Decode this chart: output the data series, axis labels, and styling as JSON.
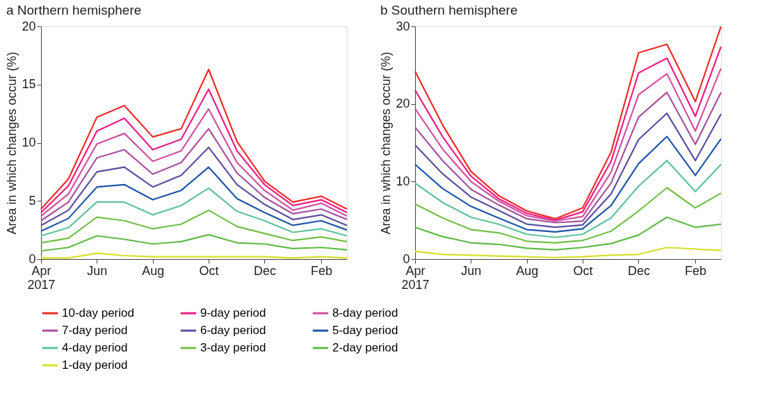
{
  "chart_data": [
    {
      "type": "line",
      "title": "a Northern hemisphere",
      "ylabel": "Area in which changes occur (%)",
      "x": [
        "2017-04",
        "2017-05",
        "2017-06",
        "2017-07",
        "2017-08",
        "2017-09",
        "2017-10",
        "2017-11",
        "2017-12",
        "2018-01",
        "2018-02",
        "2018-03"
      ],
      "xlim": [
        "2017-04",
        "2018-03"
      ],
      "xticks": [
        {
          "value": "2017-04",
          "label": "Apr 2017"
        },
        {
          "value": "2017-06",
          "label": "Jun"
        },
        {
          "value": "2017-08",
          "label": "Aug"
        },
        {
          "value": "2017-10",
          "label": "Oct"
        },
        {
          "value": "2017-12",
          "label": "Dec"
        },
        {
          "value": "2018-02",
          "label": "Feb"
        }
      ],
      "ylim": [
        0,
        20
      ],
      "yticks": [
        0,
        5,
        10,
        15,
        20
      ],
      "grid": false,
      "legend": "bottom",
      "marker": "none",
      "line_style": "solid",
      "series": [
        {
          "name": "10-day period",
          "color": "#ee2a2a",
          "values": [
            4.3,
            6.9,
            12.2,
            13.2,
            10.5,
            11.2,
            16.3,
            10.1,
            6.7,
            4.9,
            5.4,
            4.3
          ]
        },
        {
          "name": "9-day period",
          "color": "#ec1c84",
          "values": [
            4.0,
            6.3,
            11.0,
            12.1,
            9.4,
            10.3,
            14.6,
            9.3,
            6.4,
            4.6,
            5.1,
            4.0
          ]
        },
        {
          "name": "8-day period",
          "color": "#d2509e",
          "values": [
            3.7,
            5.6,
            9.9,
            10.8,
            8.4,
            9.3,
            12.9,
            8.3,
            5.9,
            4.2,
            4.8,
            3.7
          ]
        },
        {
          "name": "7-day period",
          "color": "#a6509e",
          "values": [
            3.3,
            4.9,
            8.7,
            9.4,
            7.3,
            8.3,
            11.2,
            7.4,
            5.3,
            3.9,
            4.3,
            3.4
          ]
        },
        {
          "name": "6-day period",
          "color": "#5a4fa0",
          "values": [
            2.9,
            4.2,
            7.5,
            7.9,
            6.2,
            7.2,
            9.6,
            6.4,
            4.7,
            3.4,
            3.8,
            2.9
          ]
        },
        {
          "name": "5-day period",
          "color": "#1e55a8",
          "values": [
            2.4,
            3.5,
            6.2,
            6.4,
            5.1,
            5.9,
            7.9,
            5.2,
            4.0,
            2.9,
            3.3,
            2.5
          ]
        },
        {
          "name": "4-day period",
          "color": "#5ec29a",
          "values": [
            2.0,
            2.7,
            4.9,
            4.9,
            3.8,
            4.6,
            6.1,
            4.1,
            3.3,
            2.3,
            2.6,
            2.0
          ]
        },
        {
          "name": "3-day period",
          "color": "#72bf48",
          "values": [
            1.4,
            1.8,
            3.6,
            3.3,
            2.6,
            3.0,
            4.2,
            2.8,
            2.2,
            1.6,
            1.9,
            1.5
          ]
        },
        {
          "name": "2-day period",
          "color": "#5fba46",
          "values": [
            0.7,
            1.0,
            2.0,
            1.7,
            1.3,
            1.5,
            2.1,
            1.4,
            1.3,
            0.9,
            1.0,
            0.8
          ]
        },
        {
          "name": "1-day period",
          "color": "#d8df2a",
          "values": [
            0.1,
            0.1,
            0.5,
            0.3,
            0.2,
            0.2,
            0.2,
            0.2,
            0.2,
            0.1,
            0.2,
            0.1
          ]
        }
      ]
    },
    {
      "type": "line",
      "title": "b Southern hemisphere",
      "ylabel": "Area in which changes occur (%)",
      "x": [
        "2017-04",
        "2017-05",
        "2017-06",
        "2017-07",
        "2017-08",
        "2017-09",
        "2017-10",
        "2017-11",
        "2017-12",
        "2018-01",
        "2018-02",
        "2018-03"
      ],
      "xlim": [
        "2017-04",
        "2018-03"
      ],
      "xticks": [
        {
          "value": "2017-04",
          "label": "Apr 2017"
        },
        {
          "value": "2017-06",
          "label": "Jun"
        },
        {
          "value": "2017-08",
          "label": "Aug"
        },
        {
          "value": "2017-10",
          "label": "Oct"
        },
        {
          "value": "2017-12",
          "label": "Dec"
        },
        {
          "value": "2018-02",
          "label": "Feb"
        }
      ],
      "ylim": [
        0,
        30
      ],
      "yticks": [
        0,
        10,
        20,
        30
      ],
      "grid": false,
      "marker": "none",
      "line_style": "solid",
      "series": [
        {
          "name": "10-day period",
          "color": "#ee2a2a",
          "values": [
            24.2,
            17.3,
            11.3,
            8.2,
            6.2,
            5.2,
            6.6,
            13.8,
            26.6,
            27.7,
            20.3,
            30.0
          ]
        },
        {
          "name": "9-day period",
          "color": "#ec1c84",
          "values": [
            21.8,
            15.8,
            10.7,
            7.8,
            5.9,
            5.0,
            6.1,
            12.6,
            24.0,
            25.9,
            18.4,
            27.4
          ]
        },
        {
          "name": "8-day period",
          "color": "#d2509e",
          "values": [
            19.4,
            14.2,
            10.0,
            7.5,
            5.6,
            4.9,
            5.5,
            11.2,
            21.2,
            23.9,
            16.5,
            24.6
          ]
        },
        {
          "name": "7-day period",
          "color": "#a6509e",
          "values": [
            17.0,
            12.7,
            9.0,
            7.0,
            5.2,
            4.7,
            4.9,
            9.8,
            18.3,
            21.5,
            14.8,
            21.5
          ]
        },
        {
          "name": "6-day period",
          "color": "#5a4fa0",
          "values": [
            14.7,
            11.0,
            8.0,
            6.3,
            4.5,
            4.1,
            4.4,
            8.4,
            15.4,
            18.8,
            12.7,
            18.7
          ]
        },
        {
          "name": "5-day period",
          "color": "#1e55a8",
          "values": [
            12.2,
            9.1,
            6.8,
            5.3,
            3.8,
            3.5,
            3.9,
            6.9,
            12.3,
            15.8,
            10.8,
            15.5
          ]
        },
        {
          "name": "4-day period",
          "color": "#5ec29a",
          "values": [
            9.8,
            7.3,
            5.4,
            4.5,
            3.2,
            2.8,
            3.2,
            5.3,
            9.4,
            12.7,
            8.7,
            12.2
          ]
        },
        {
          "name": "3-day period",
          "color": "#72bf48",
          "values": [
            7.1,
            5.3,
            3.8,
            3.4,
            2.3,
            2.1,
            2.4,
            3.6,
            6.2,
            9.2,
            6.6,
            8.5
          ]
        },
        {
          "name": "2-day period",
          "color": "#5fba46",
          "values": [
            4.1,
            2.9,
            2.1,
            1.9,
            1.4,
            1.2,
            1.5,
            2.0,
            3.1,
            5.4,
            4.1,
            4.5
          ]
        },
        {
          "name": "1-day period",
          "color": "#d8df2a",
          "values": [
            1.0,
            0.6,
            0.5,
            0.4,
            0.3,
            0.2,
            0.3,
            0.5,
            0.6,
            1.5,
            1.3,
            1.1
          ]
        }
      ]
    }
  ]
}
